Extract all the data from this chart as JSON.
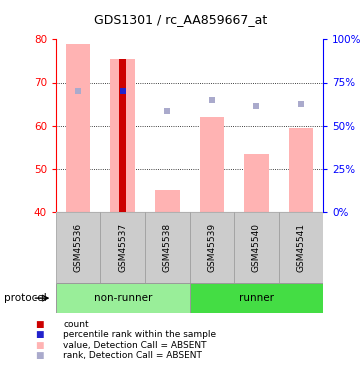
{
  "title": "GDS1301 / rc_AA859667_at",
  "samples": [
    "GSM45536",
    "GSM45537",
    "GSM45538",
    "GSM45539",
    "GSM45540",
    "GSM45541"
  ],
  "ylim_left": [
    40,
    80
  ],
  "ylim_right": [
    0,
    100
  ],
  "yticks_left": [
    40,
    50,
    60,
    70,
    80
  ],
  "yticks_right": [
    0,
    25,
    50,
    75,
    100
  ],
  "ytick_labels_right": [
    "0%",
    "25%",
    "50%",
    "75%",
    "100%"
  ],
  "bar_values_pink": [
    79.0,
    75.5,
    45.0,
    62.0,
    53.5,
    59.5
  ],
  "bar_value_red": 75.5,
  "bar_red_index": 1,
  "rank_squares_lightblue": [
    68.0,
    68.0,
    63.5,
    66.0,
    64.5,
    65.0
  ],
  "rank_square_blue_index": 1,
  "rank_square_blue_val": 68.0,
  "color_pink": "#FFB3B3",
  "color_red": "#CC0000",
  "color_blue_dark": "#2222CC",
  "color_blue_light": "#AAAACC",
  "color_nonrunner": "#99EE99",
  "color_runner": "#44DD44",
  "color_sample_bg": "#CCCCCC",
  "color_border": "#999999",
  "figsize": [
    3.61,
    3.75
  ],
  "dpi": 100
}
